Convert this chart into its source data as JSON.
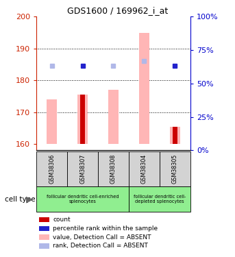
{
  "title": "GDS1600 / 169962_i_at",
  "samples": [
    "GSM38306",
    "GSM38307",
    "GSM38308",
    "GSM38304",
    "GSM38305"
  ],
  "ylim_left": [
    158,
    200
  ],
  "ylim_right": [
    0,
    100
  ],
  "yticks_left": [
    160,
    170,
    180,
    190,
    200
  ],
  "yticks_right": [
    0,
    25,
    50,
    75,
    100
  ],
  "bar_values": [
    174.0,
    175.5,
    177.0,
    195.0,
    165.5
  ],
  "dark_bar_values": [
    null,
    175.5,
    null,
    null,
    165.5
  ],
  "rank_dots": [
    184.5,
    184.5,
    184.5,
    186.0,
    184.5
  ],
  "rank_dot_colors": [
    "#b0b8e8",
    "#2222cc",
    "#b0b8e8",
    "#b0b8e8",
    "#2222cc"
  ],
  "bar_base": 160,
  "left_color": "#cc2200",
  "right_color": "#0000cc",
  "grid_color": "#000000",
  "bar_color_light": "#ffb6b6",
  "bar_color_dark": "#cc0000",
  "group1_label": "follicular dendritic cell-enriched\nsplenocytes",
  "group2_label": "follicular dendritic cell-\ndepleted splenocytes",
  "group1_color": "#90ee90",
  "group2_color": "#90ee90",
  "cell_type_label": "cell type",
  "legend_items": [
    {
      "color": "#cc0000",
      "label": "count"
    },
    {
      "color": "#2222cc",
      "label": "percentile rank within the sample"
    },
    {
      "color": "#ffb6b6",
      "label": "value, Detection Call = ABSENT"
    },
    {
      "color": "#b0b8e8",
      "label": "rank, Detection Call = ABSENT"
    }
  ]
}
